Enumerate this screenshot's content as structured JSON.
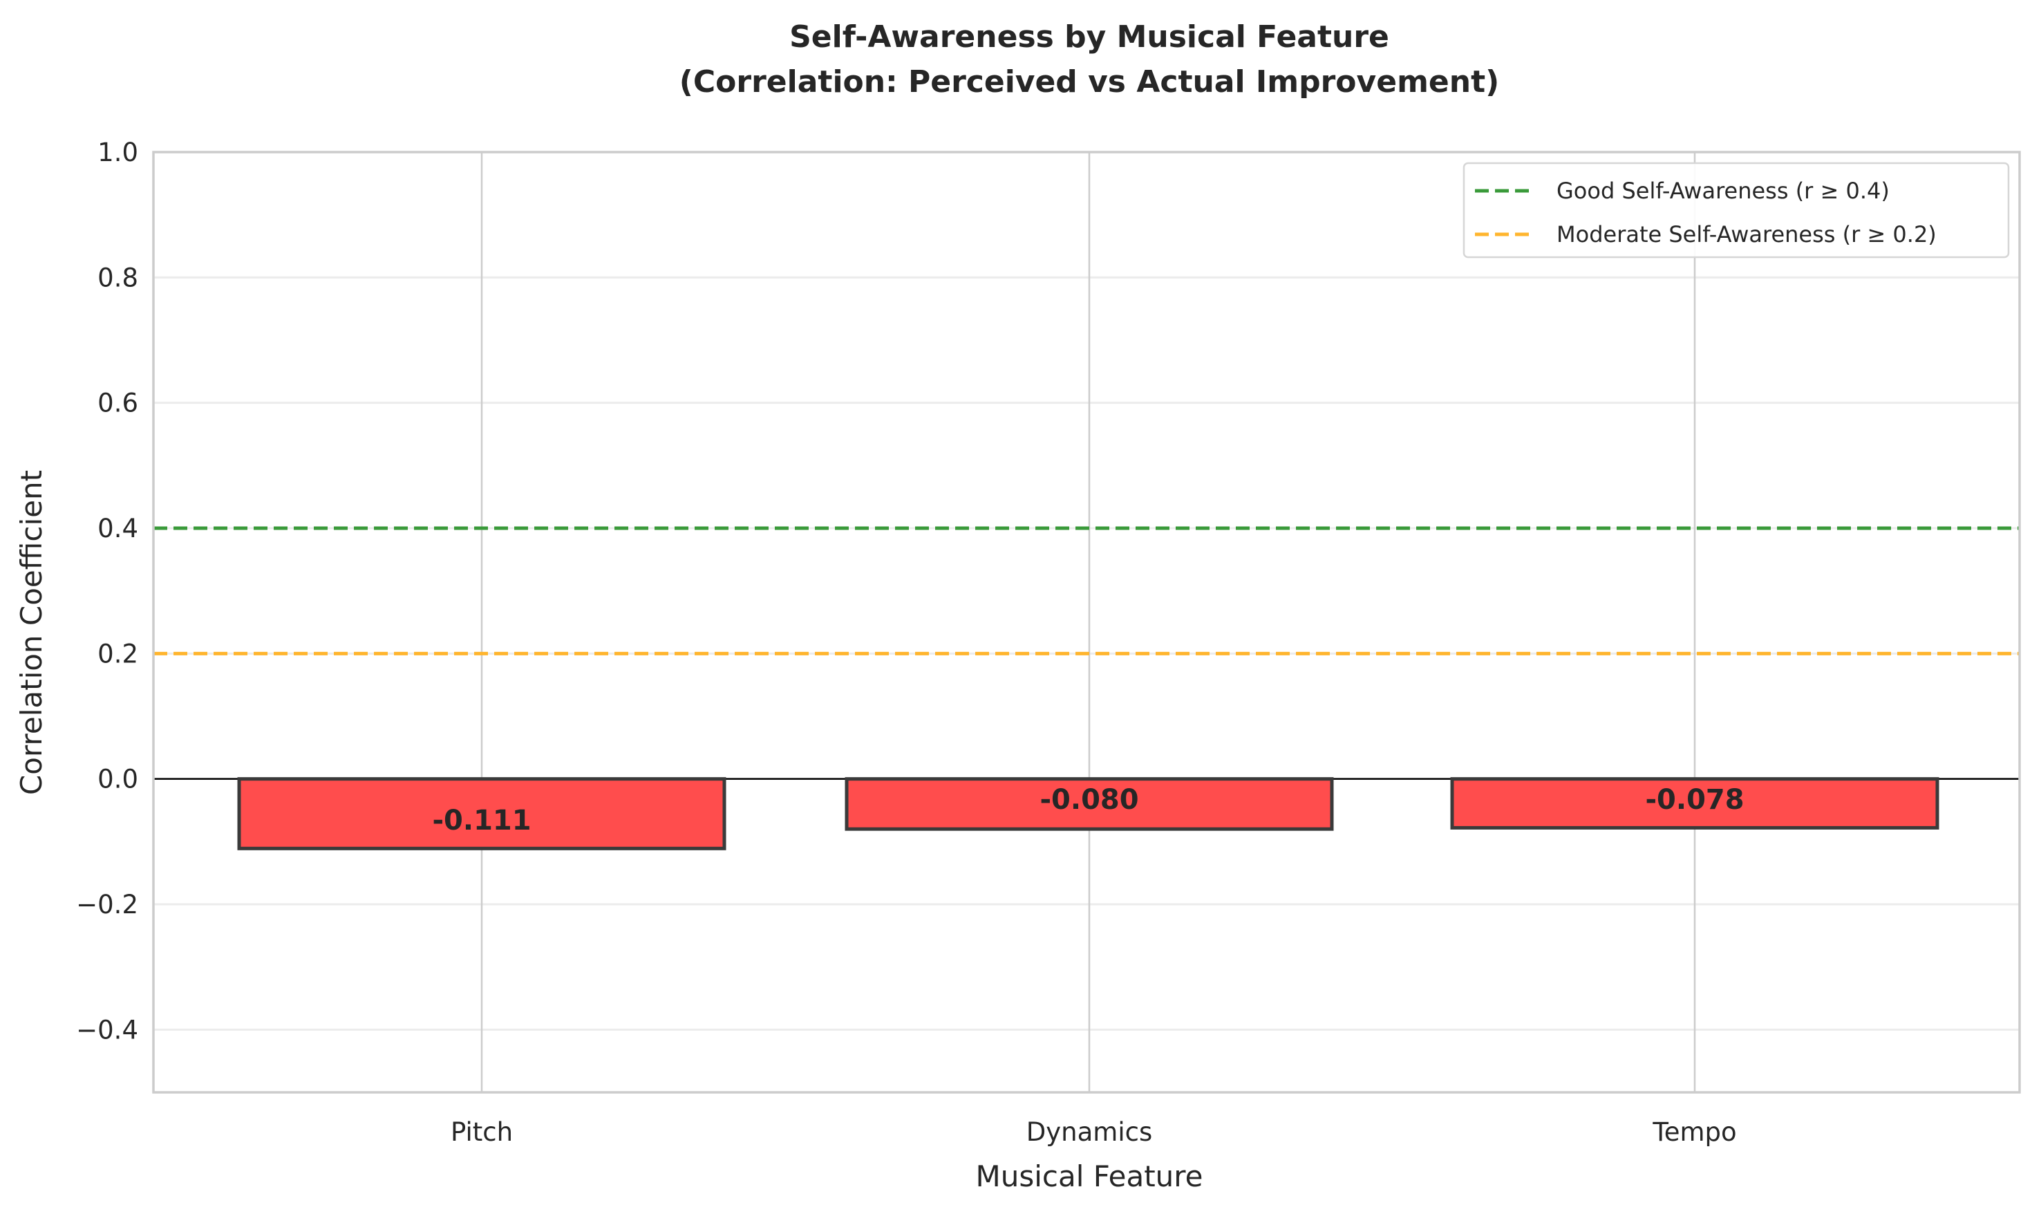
{
  "chart_data": {
    "type": "bar",
    "title_lines": [
      "Self-Awareness by Musical Feature",
      "(Correlation: Perceived vs Actual Improvement)"
    ],
    "xlabel": "Musical Feature",
    "ylabel": "Correlation Coefficient",
    "categories": [
      "Pitch",
      "Dynamics",
      "Tempo"
    ],
    "values": [
      -0.111,
      -0.08,
      -0.078
    ],
    "value_labels": [
      "-0.111",
      "-0.080",
      "-0.078"
    ],
    "bar_color": "#ff4d4d",
    "bar_edge_color": "#3a3a3a",
    "ylim": [
      -0.5,
      1.0
    ],
    "yticks": [
      -0.4,
      -0.2,
      0.0,
      0.2,
      0.4,
      0.6,
      0.8,
      1.0
    ],
    "ytick_labels": [
      "−0.4",
      "−0.2",
      "0.0",
      "0.2",
      "0.4",
      "0.6",
      "0.8",
      "1.0"
    ],
    "grid": true,
    "zero_line": true,
    "reference_lines": [
      {
        "name": "Good Self-Awareness (r ≥ 0.4)",
        "y": 0.4,
        "color": "#3a9a3a",
        "style": "dashed"
      },
      {
        "name": "Moderate Self-Awareness (r ≥ 0.2)",
        "y": 0.2,
        "color": "#ffb52e",
        "style": "dashed"
      }
    ],
    "legend_position": "top-right"
  }
}
